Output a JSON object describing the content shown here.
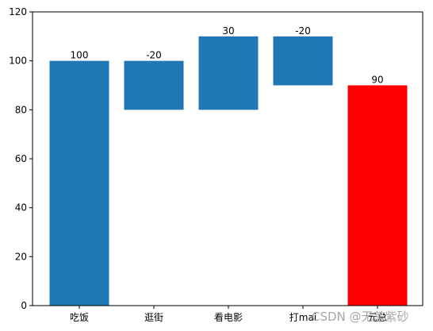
{
  "chart_data": {
    "type": "bar",
    "subtype": "waterfall",
    "categories": [
      "吃饭",
      "逛街",
      "看电影",
      "打mai",
      "元总"
    ],
    "bars": [
      {
        "bottom": 0,
        "top": 100,
        "label": "100",
        "color": "#1f77b4"
      },
      {
        "bottom": 80,
        "top": 100,
        "label": "-20",
        "color": "#1f77b4"
      },
      {
        "bottom": 80,
        "top": 110,
        "label": "30",
        "color": "#1f77b4"
      },
      {
        "bottom": 90,
        "top": 110,
        "label": "-20",
        "color": "#1f77b4"
      },
      {
        "bottom": 0,
        "top": 90,
        "label": "90",
        "color": "#ff0000"
      }
    ],
    "ylim": [
      0,
      120
    ],
    "yticks": [
      0,
      20,
      40,
      60,
      80,
      100,
      120
    ],
    "grid": false,
    "title": "",
    "xlabel": "",
    "ylabel": ""
  },
  "watermark": "CSDN @无恙紫砂"
}
